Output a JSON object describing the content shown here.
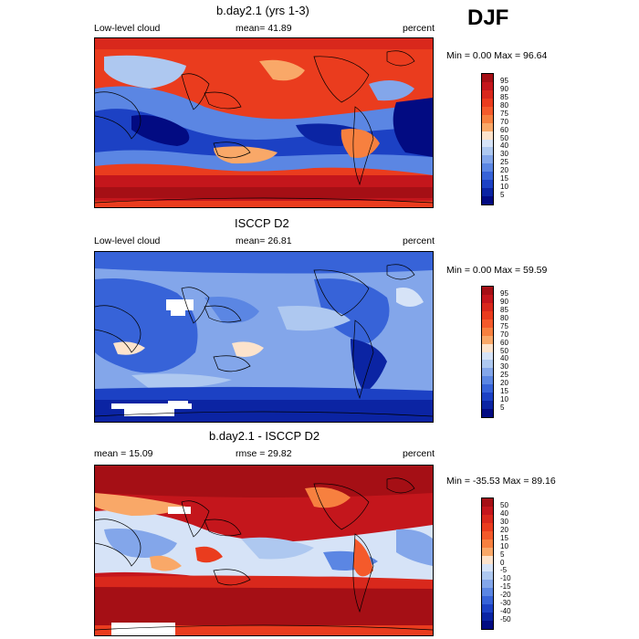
{
  "season": "DJF",
  "panels": [
    {
      "title": "b.day2.1 (yrs 1-3)",
      "left_label": "Low-level cloud",
      "center_label": "mean=  41.89",
      "right_label": "percent",
      "minmax": "Min =   0.00 Max =  96.64",
      "scale": "abs"
    },
    {
      "title": "ISCCP D2",
      "left_label": "Low-level cloud",
      "center_label": "mean=  26.81",
      "right_label": "percent",
      "minmax": "Min =   0.00 Max =  59.59",
      "scale": "abs"
    },
    {
      "title": "b.day2.1 - ISCCP D2",
      "left_label": "mean =  15.09",
      "center_label": "rmse =  29.82",
      "right_label": "percent",
      "minmax": "Min = -35.53 Max =  89.16",
      "scale": "diff"
    }
  ],
  "colorbars": {
    "abs": {
      "levels": [
        "95",
        "90",
        "85",
        "80",
        "75",
        "70",
        "60",
        "50",
        "40",
        "30",
        "25",
        "20",
        "15",
        "10",
        "5"
      ],
      "colors": [
        "#a50f15",
        "#c4161c",
        "#d9281c",
        "#ea3c1e",
        "#f45a2b",
        "#f7803f",
        "#f9a868",
        "#fde3cc",
        "#d6e3f7",
        "#aec8f0",
        "#83a6ea",
        "#5b86e3",
        "#3763d8",
        "#1c41c4",
        "#0b24a3",
        "#020b82"
      ]
    },
    "diff": {
      "levels": [
        "50",
        "40",
        "30",
        "20",
        "15",
        "10",
        "5",
        "0",
        "-5",
        "-10",
        "-15",
        "-20",
        "-30",
        "-40",
        "-50"
      ],
      "colors": [
        "#a50f15",
        "#c4161c",
        "#d9281c",
        "#ea3c1e",
        "#f45a2b",
        "#f7803f",
        "#f9a868",
        "#fde3cc",
        "#d6e3f7",
        "#aec8f0",
        "#83a6ea",
        "#5b86e3",
        "#3763d8",
        "#1c41c4",
        "#0b24a3",
        "#020b82"
      ]
    }
  }
}
